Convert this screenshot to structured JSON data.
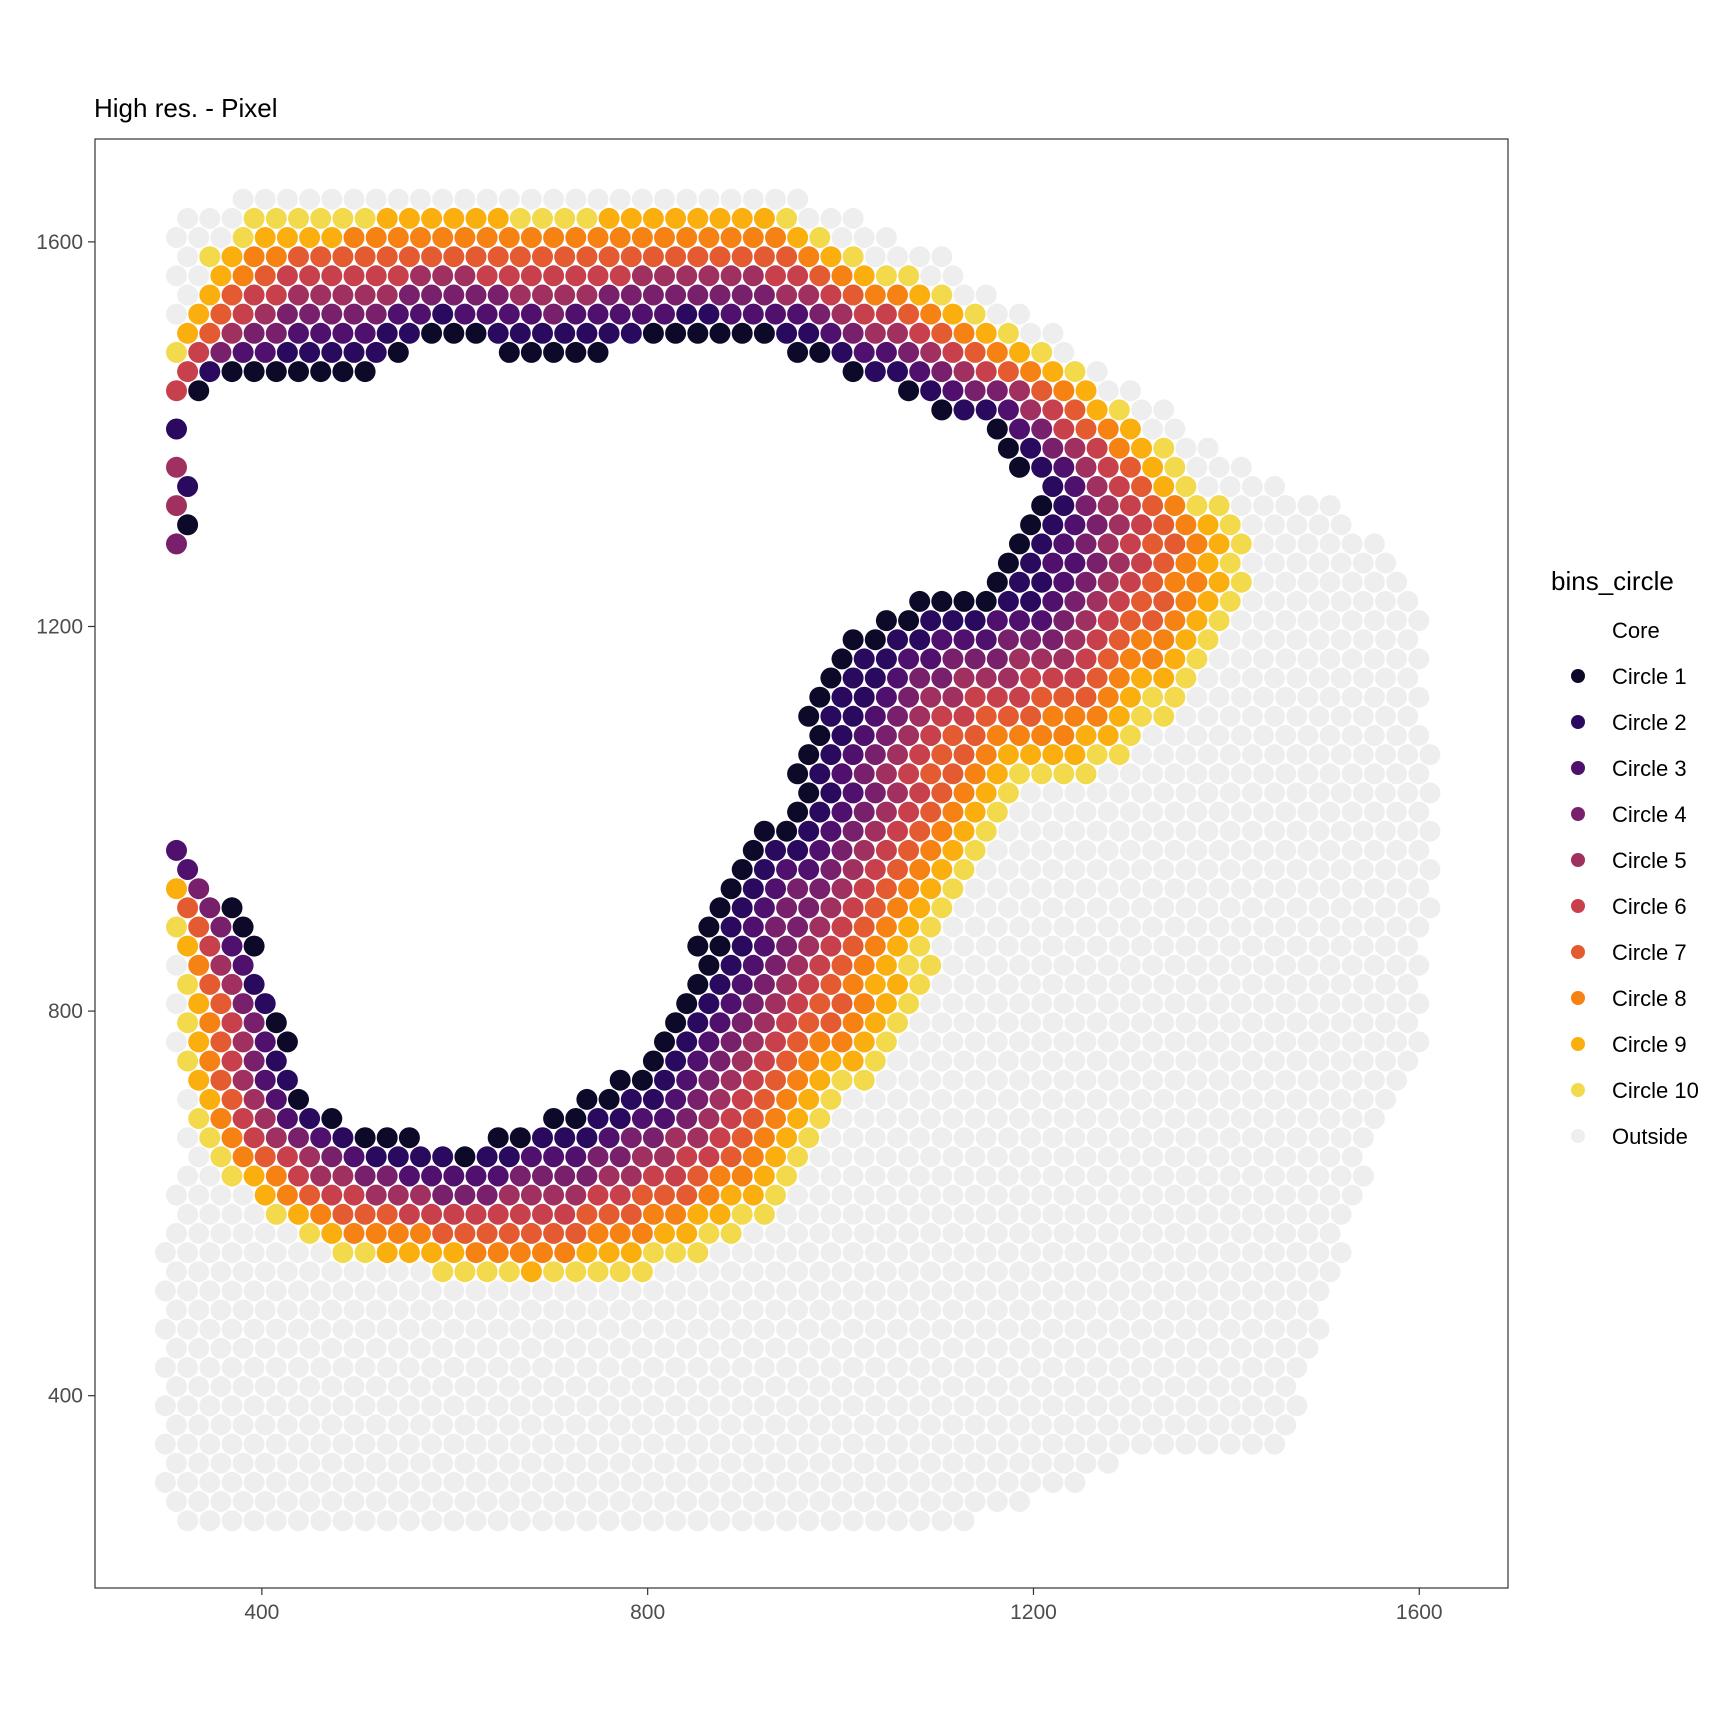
{
  "chart_data": {
    "type": "scatter",
    "title": "High res. - Pixel",
    "xlabel": "",
    "ylabel": "",
    "xlim": [
      227,
      1692
    ],
    "ylim": [
      200,
      1707
    ],
    "x_ticks": [
      400,
      800,
      1200,
      1600
    ],
    "y_ticks": [
      400,
      800,
      1200,
      1600
    ],
    "grid": false,
    "legend": {
      "title": "bins_circle",
      "position": "right",
      "entries": [
        {
          "label": "Core",
          "color": "#ffffff"
        },
        {
          "label": "Circle 1",
          "color": "#0d0a29"
        },
        {
          "label": "Circle 2",
          "color": "#2a0a5e"
        },
        {
          "label": "Circle 3",
          "color": "#50106e"
        },
        {
          "label": "Circle 4",
          "color": "#78206c"
        },
        {
          "label": "Circle 5",
          "color": "#a0305f"
        },
        {
          "label": "Circle 6",
          "color": "#c8404c"
        },
        {
          "label": "Circle 7",
          "color": "#e45a31"
        },
        {
          "label": "Circle 8",
          "color": "#f68214"
        },
        {
          "label": "Circle 9",
          "color": "#fbaf0f"
        },
        {
          "label": "Circle 10",
          "color": "#f3da4d"
        },
        {
          "label": "Outside",
          "color": "#eeeeee"
        }
      ]
    },
    "point_spacing": 23,
    "region": {
      "sample_outline": [
        [
          310,
          1636
        ],
        [
          400,
          1650
        ],
        [
          950,
          1650
        ],
        [
          1100,
          1590
        ],
        [
          1330,
          1430
        ],
        [
          1430,
          1360
        ],
        [
          1530,
          1320
        ],
        [
          1600,
          1220
        ],
        [
          1620,
          1000
        ],
        [
          1600,
          760
        ],
        [
          1540,
          620
        ],
        [
          1480,
          400
        ],
        [
          1460,
          350
        ],
        [
          1300,
          330
        ],
        [
          1150,
          270
        ],
        [
          700,
          260
        ],
        [
          320,
          260
        ],
        [
          300,
          300
        ],
        [
          300,
          560
        ],
        [
          320,
          680
        ],
        [
          300,
          800
        ],
        [
          310,
          1100
        ]
      ],
      "tissue_outline": [
        [
          300,
          1460
        ],
        [
          340,
          1580
        ],
        [
          400,
          1640
        ],
        [
          940,
          1640
        ],
        [
          1040,
          1580
        ],
        [
          1100,
          1560
        ],
        [
          1230,
          1480
        ],
        [
          1310,
          1420
        ],
        [
          1380,
          1340
        ],
        [
          1420,
          1300
        ],
        [
          1420,
          1240
        ],
        [
          1380,
          1160
        ],
        [
          1330,
          1100
        ],
        [
          1260,
          1040
        ],
        [
          1200,
          1040
        ],
        [
          1160,
          980
        ],
        [
          1130,
          920
        ],
        [
          1090,
          840
        ],
        [
          1060,
          760
        ],
        [
          1000,
          700
        ],
        [
          940,
          600
        ],
        [
          880,
          560
        ],
        [
          780,
          520
        ],
        [
          680,
          510
        ],
        [
          560,
          530
        ],
        [
          480,
          540
        ],
        [
          400,
          590
        ],
        [
          350,
          640
        ],
        [
          320,
          720
        ],
        [
          320,
          800
        ],
        [
          310,
          860
        ],
        [
          300,
          980
        ],
        [
          290,
          1060
        ],
        [
          290,
          1180
        ],
        [
          290,
          1280
        ],
        [
          290,
          1380
        ]
      ],
      "core_outline": [
        [
          520,
          1460
        ],
        [
          580,
          1500
        ],
        [
          700,
          1470
        ],
        [
          840,
          1500
        ],
        [
          940,
          1490
        ],
        [
          1060,
          1440
        ],
        [
          1160,
          1400
        ],
        [
          1210,
          1330
        ],
        [
          1160,
          1250
        ],
        [
          1050,
          1220
        ],
        [
          1000,
          1180
        ],
        [
          960,
          1110
        ],
        [
          950,
          1010
        ],
        [
          880,
          960
        ],
        [
          840,
          830
        ],
        [
          790,
          740
        ],
        [
          720,
          700
        ],
        [
          610,
          660
        ],
        [
          500,
          680
        ],
        [
          440,
          720
        ],
        [
          420,
          810
        ],
        [
          380,
          900
        ],
        [
          320,
          960
        ],
        [
          270,
          1030
        ],
        [
          250,
          1100
        ],
        [
          250,
          1200
        ],
        [
          320,
          1270
        ],
        [
          330,
          1360
        ],
        [
          310,
          1420
        ],
        [
          350,
          1460
        ],
        [
          410,
          1460
        ]
      ],
      "bands": 10
    }
  }
}
